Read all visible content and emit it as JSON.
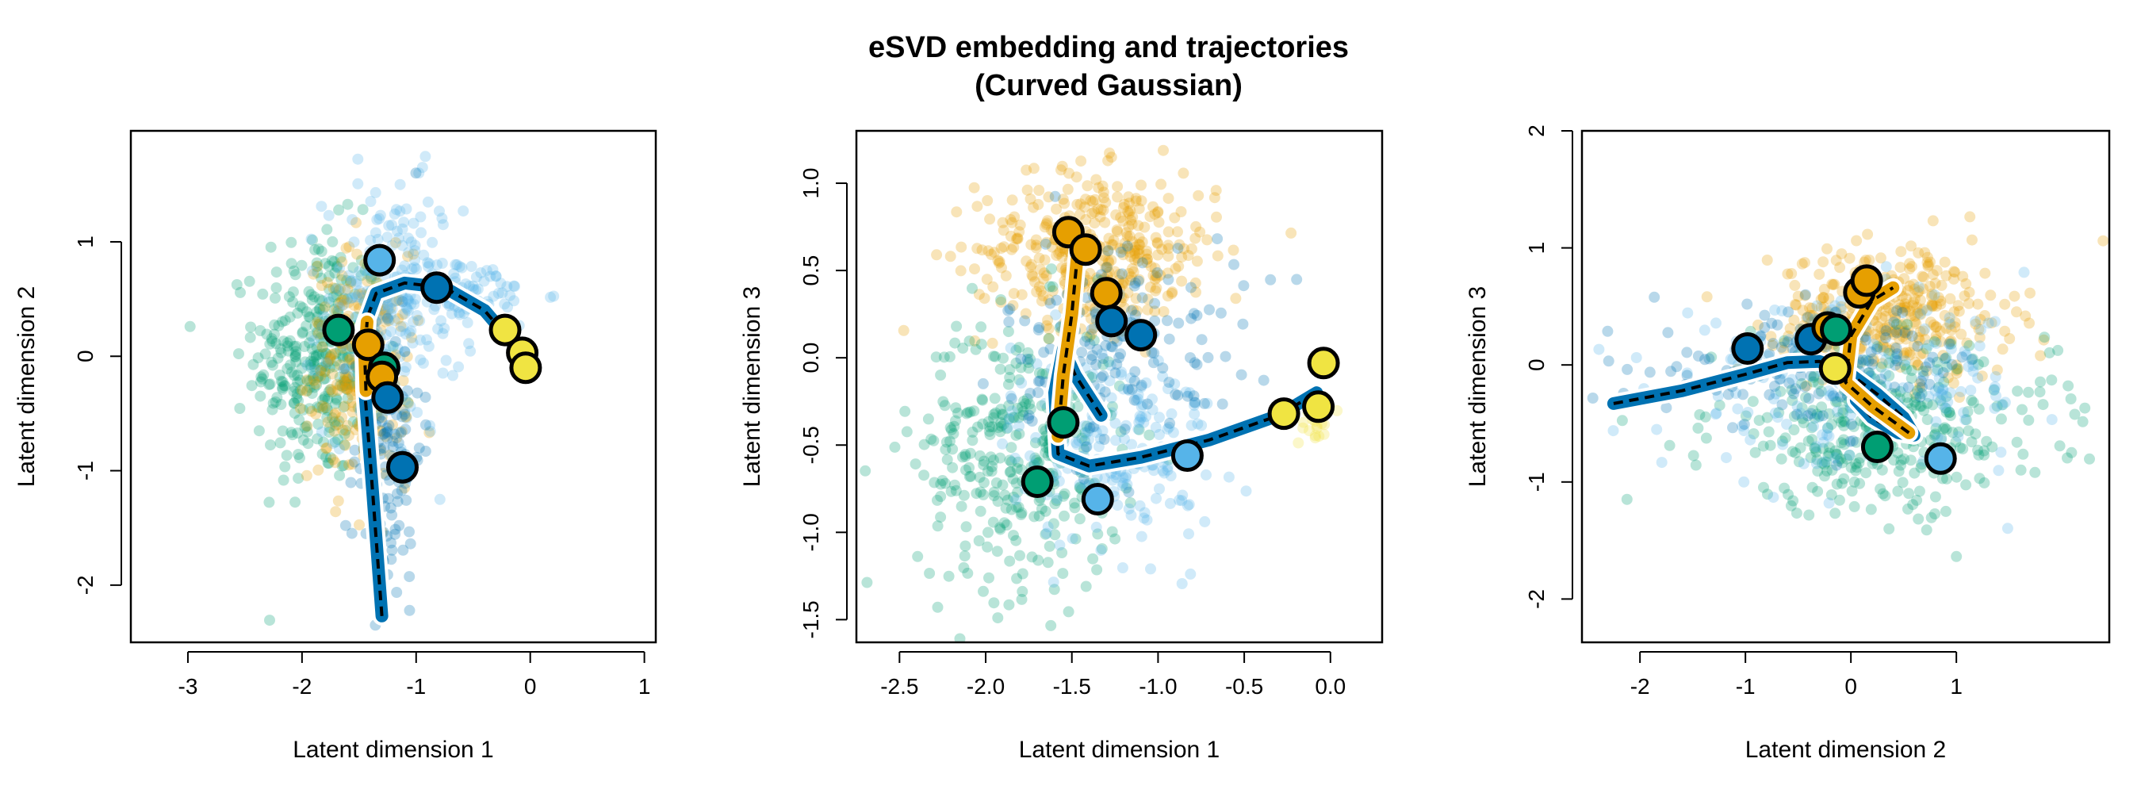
{
  "figure": {
    "title_line1": "eSVD embedding and trajectories",
    "title_line2": "(Curved Gaussian)"
  },
  "colors": {
    "orange": "#E69F00",
    "sky": "#56B4E9",
    "green": "#009E73",
    "blue": "#0072B2",
    "yellow": "#F0E442",
    "dark": "#000000"
  },
  "chart_data": [
    {
      "type": "scatter",
      "xlabel": "Latent dimension 1",
      "ylabel": "Latent dimension 2",
      "xlim": [
        -3.5,
        1.1
      ],
      "ylim": [
        -2.5,
        1.97
      ],
      "xticks": [
        -3,
        -2,
        -1,
        0,
        1
      ],
      "yticks": [
        -2,
        -1,
        0,
        1
      ],
      "cloud": [
        {
          "color": "green",
          "n": 340,
          "cx": -1.85,
          "cy": 0.0,
          "sx": 0.28,
          "sy": 0.55
        },
        {
          "color": "orange",
          "n": 240,
          "cx": -1.5,
          "cy": -0.1,
          "sx": 0.22,
          "sy": 0.5
        },
        {
          "color": "sky",
          "n": 220,
          "cx": -1.2,
          "cy": 0.4,
          "sx": 0.3,
          "sy": 0.55
        },
        {
          "color": "blue",
          "n": 120,
          "cx": -1.25,
          "cy": -0.8,
          "sx": 0.15,
          "sy": 0.7
        },
        {
          "color": "sky",
          "n": 80,
          "cx": -0.6,
          "cy": 0.55,
          "sx": 0.35,
          "sy": 0.15
        }
      ],
      "curves": [
        {
          "color": "blue",
          "points": [
            [
              -1.3,
              -2.27
            ],
            [
              -1.38,
              -1.2
            ],
            [
              -1.45,
              -0.3
            ],
            [
              -1.46,
              0.25
            ],
            [
              -1.35,
              0.55
            ],
            [
              -1.1,
              0.64
            ],
            [
              -0.75,
              0.6
            ],
            [
              -0.4,
              0.4
            ],
            [
              -0.1,
              0.05
            ]
          ]
        },
        {
          "color": "orange",
          "points": [
            [
              -1.44,
              -0.3
            ],
            [
              -1.45,
              0.0
            ],
            [
              -1.43,
              0.3
            ]
          ]
        }
      ],
      "centers": [
        {
          "color": "sky",
          "x": -1.32,
          "y": 0.84
        },
        {
          "color": "blue",
          "x": -0.82,
          "y": 0.6
        },
        {
          "color": "green",
          "x": -1.68,
          "y": 0.23
        },
        {
          "color": "orange",
          "x": -1.42,
          "y": 0.1
        },
        {
          "color": "green",
          "x": -1.28,
          "y": -0.1
        },
        {
          "color": "orange",
          "x": -1.3,
          "y": -0.18
        },
        {
          "color": "blue",
          "x": -1.25,
          "y": -0.36
        },
        {
          "color": "blue",
          "x": -1.12,
          "y": -0.97
        },
        {
          "color": "yellow",
          "x": -0.22,
          "y": 0.23
        },
        {
          "color": "yellow",
          "x": -0.07,
          "y": 0.03
        },
        {
          "color": "yellow",
          "x": -0.04,
          "y": -0.1
        }
      ]
    },
    {
      "type": "scatter",
      "xlabel": "Latent dimension 1",
      "ylabel": "Latent dimension 3",
      "xlim": [
        -2.75,
        0.3
      ],
      "ylim": [
        -1.63,
        1.3
      ],
      "xticks": [
        -2.5,
        -2.0,
        -1.5,
        -1.0,
        -0.5,
        0.0
      ],
      "tick_labels_x": [
        "-2.5",
        "-2.0",
        "-1.5",
        "-1.0",
        "-0.5",
        "0.0"
      ],
      "yticks": [
        -1.5,
        -1.0,
        -0.5,
        0.0,
        0.5,
        1.0
      ],
      "tick_labels_y": [
        "-1.5",
        "-1.0",
        "-0.5",
        "0.0",
        "0.5",
        "1.0"
      ],
      "cloud": [
        {
          "color": "orange",
          "n": 380,
          "cx": -1.35,
          "cy": 0.62,
          "sx": 0.35,
          "sy": 0.22
        },
        {
          "color": "green",
          "n": 340,
          "cx": -1.8,
          "cy": -0.55,
          "sx": 0.3,
          "sy": 0.4
        },
        {
          "color": "sky",
          "n": 200,
          "cx": -1.25,
          "cy": -0.5,
          "sx": 0.3,
          "sy": 0.3
        },
        {
          "color": "blue",
          "n": 160,
          "cx": -1.2,
          "cy": 0.1,
          "sx": 0.35,
          "sy": 0.3
        },
        {
          "color": "yellow",
          "n": 30,
          "cx": -0.1,
          "cy": -0.35,
          "sx": 0.05,
          "sy": 0.08
        }
      ],
      "curves": [
        {
          "color": "blue",
          "points": [
            [
              -1.33,
              -0.33
            ],
            [
              -1.48,
              -0.1
            ],
            [
              -1.55,
              0.05
            ],
            [
              -1.6,
              -0.2
            ],
            [
              -1.58,
              -0.55
            ],
            [
              -1.4,
              -0.62
            ],
            [
              -1.1,
              -0.57
            ],
            [
              -0.7,
              -0.47
            ],
            [
              -0.3,
              -0.33
            ],
            [
              -0.08,
              -0.2
            ]
          ]
        },
        {
          "color": "orange",
          "points": [
            [
              -1.58,
              -0.45
            ],
            [
              -1.55,
              -0.1
            ],
            [
              -1.5,
              0.25
            ],
            [
              -1.46,
              0.67
            ]
          ]
        }
      ],
      "centers": [
        {
          "color": "orange",
          "x": -1.52,
          "y": 0.72
        },
        {
          "color": "orange",
          "x": -1.42,
          "y": 0.62
        },
        {
          "color": "orange",
          "x": -1.3,
          "y": 0.37
        },
        {
          "color": "blue",
          "x": -1.27,
          "y": 0.21
        },
        {
          "color": "blue",
          "x": -1.1,
          "y": 0.13
        },
        {
          "color": "green",
          "x": -1.55,
          "y": -0.37
        },
        {
          "color": "green",
          "x": -1.7,
          "y": -0.71
        },
        {
          "color": "sky",
          "x": -1.35,
          "y": -0.81
        },
        {
          "color": "sky",
          "x": -0.83,
          "y": -0.56
        },
        {
          "color": "yellow",
          "x": -0.27,
          "y": -0.32
        },
        {
          "color": "yellow",
          "x": -0.07,
          "y": -0.28
        },
        {
          "color": "yellow",
          "x": -0.04,
          "y": -0.03
        }
      ]
    },
    {
      "type": "scatter",
      "xlabel": "Latent dimension 2",
      "ylabel": "Latent dimension 3",
      "xlim": [
        -2.55,
        2.45
      ],
      "ylim": [
        -2.37,
        2.0
      ],
      "xticks": [
        -2,
        -1,
        0,
        1
      ],
      "yticks": [
        -2,
        -1,
        0,
        1,
        2
      ],
      "cloud": [
        {
          "color": "orange",
          "n": 340,
          "cx": 0.4,
          "cy": 0.45,
          "sx": 0.55,
          "sy": 0.28
        },
        {
          "color": "green",
          "n": 360,
          "cx": 0.3,
          "cy": -0.55,
          "sx": 0.8,
          "sy": 0.35
        },
        {
          "color": "sky",
          "n": 200,
          "cx": 0.0,
          "cy": -0.2,
          "sx": 0.9,
          "sy": 0.35
        },
        {
          "color": "blue",
          "n": 150,
          "cx": -0.3,
          "cy": 0.0,
          "sx": 0.8,
          "sy": 0.25
        }
      ],
      "curves": [
        {
          "color": "blue",
          "points": [
            [
              -2.25,
              -0.33
            ],
            [
              -1.6,
              -0.22
            ],
            [
              -1.0,
              -0.08
            ],
            [
              -0.6,
              0.02
            ],
            [
              -0.3,
              0.03
            ],
            [
              -0.05,
              -0.05
            ],
            [
              0.25,
              -0.25
            ],
            [
              0.5,
              -0.45
            ],
            [
              0.6,
              -0.6
            ],
            [
              0.45,
              -0.58
            ],
            [
              0.2,
              -0.45
            ],
            [
              0.05,
              -0.3
            ]
          ]
        },
        {
          "color": "orange",
          "points": [
            [
              0.55,
              -0.58
            ],
            [
              0.2,
              -0.35
            ],
            [
              -0.05,
              -0.15
            ],
            [
              0.0,
              0.25
            ],
            [
              0.2,
              0.55
            ],
            [
              0.4,
              0.66
            ]
          ]
        }
      ],
      "centers": [
        {
          "color": "blue",
          "x": -0.98,
          "y": 0.14
        },
        {
          "color": "blue",
          "x": -0.38,
          "y": 0.22
        },
        {
          "color": "orange",
          "x": -0.22,
          "y": 0.32
        },
        {
          "color": "green",
          "x": -0.14,
          "y": 0.3
        },
        {
          "color": "orange",
          "x": 0.08,
          "y": 0.62
        },
        {
          "color": "orange",
          "x": 0.15,
          "y": 0.72
        },
        {
          "color": "yellow",
          "x": -0.15,
          "y": -0.03
        },
        {
          "color": "green",
          "x": 0.25,
          "y": -0.7
        },
        {
          "color": "sky",
          "x": 0.85,
          "y": -0.8
        }
      ]
    }
  ]
}
